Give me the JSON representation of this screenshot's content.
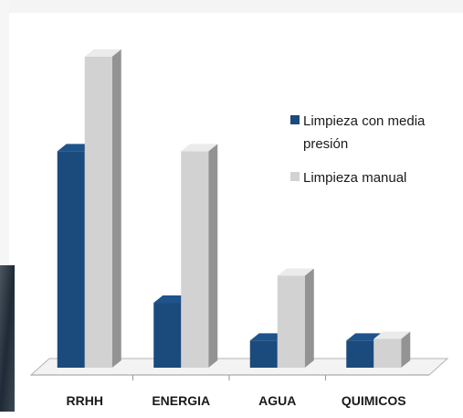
{
  "chart_data": {
    "type": "bar3d",
    "categories": [
      "RRHH",
      "ENERGIA",
      "AGUA",
      "QUIMICOS"
    ],
    "series": [
      {
        "name": "Limpieza con media presión",
        "color": "#1b4a7c",
        "values": [
          240,
          72,
          30,
          30
        ]
      },
      {
        "name": "Limpieza manual",
        "color": "#d2d2d2",
        "values": [
          345,
          240,
          102,
          32
        ]
      }
    ],
    "ylim": [
      0,
      350
    ],
    "legend": "right"
  }
}
